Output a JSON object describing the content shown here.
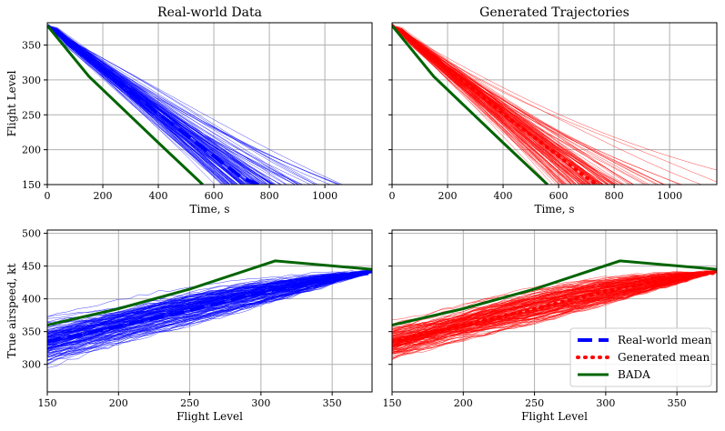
{
  "chart_data": [
    {
      "id": "tl",
      "type": "line",
      "title": "Real-world Data",
      "xlabel": "Time, s",
      "ylabel": "Flight Level",
      "xlim": [
        0,
        1170
      ],
      "ylim": [
        150,
        382
      ],
      "xticks": [
        0,
        200,
        400,
        600,
        800,
        1000
      ],
      "yticks": [
        150,
        200,
        250,
        300,
        350
      ],
      "grid": true,
      "cloud": {
        "color": "#0000ff",
        "start": [
          0,
          378
        ],
        "slope_mean": -0.31,
        "slope_spread": 0.07
      },
      "series": [
        {
          "name": "Real-world mean",
          "style": "dashed",
          "color": "#0000ff",
          "x": [
            0,
            150,
            400,
            700,
            760
          ],
          "y": [
            378,
            330,
            252,
            160,
            150
          ]
        },
        {
          "name": "BADA",
          "style": "solid",
          "color": "#006400",
          "x": [
            0,
            150,
            400,
            560
          ],
          "y": [
            378,
            305,
            210,
            150
          ]
        }
      ]
    },
    {
      "id": "tr",
      "type": "line",
      "title": "Generated Trajectories",
      "xlabel": "Time, s",
      "ylabel": "",
      "xlim": [
        0,
        1170
      ],
      "ylim": [
        150,
        382
      ],
      "xticks": [
        0,
        200,
        400,
        600,
        800,
        1000
      ],
      "yticks": [
        150,
        200,
        250,
        300,
        350
      ],
      "grid": true,
      "cloud": {
        "color": "#ff0000",
        "start": [
          0,
          378
        ],
        "slope_mean": -0.31,
        "slope_spread": 0.07
      },
      "series": [
        {
          "name": "Generated mean",
          "style": "dotted",
          "color": "#ff0000",
          "x": [
            0,
            150,
            400,
            700,
            740
          ],
          "y": [
            378,
            332,
            252,
            160,
            150
          ]
        },
        {
          "name": "BADA",
          "style": "solid",
          "color": "#006400",
          "x": [
            0,
            150,
            400,
            560
          ],
          "y": [
            378,
            305,
            210,
            150
          ]
        }
      ]
    },
    {
      "id": "bl",
      "type": "line",
      "title": "",
      "xlabel": "Flight Level",
      "ylabel": "True airspeed, kt",
      "xlim": [
        150,
        378
      ],
      "ylim": [
        258,
        505
      ],
      "xticks": [
        150,
        200,
        250,
        300,
        350
      ],
      "yticks": [
        300,
        350,
        400,
        450,
        500
      ],
      "grid": true,
      "cloud": {
        "color": "#0000ff",
        "start_mean": 335,
        "start_spread": 35,
        "end": 442,
        "bulge": 15
      },
      "series": [
        {
          "name": "Real-world mean",
          "style": "dashed",
          "color": "#0000ff",
          "x": [
            150,
            200,
            250,
            300,
            350,
            378
          ],
          "y": [
            335,
            358,
            382,
            410,
            430,
            440
          ]
        },
        {
          "name": "BADA",
          "style": "solid",
          "color": "#006400",
          "x": [
            150,
            200,
            250,
            310,
            378
          ],
          "y": [
            360,
            385,
            415,
            458,
            445
          ]
        }
      ]
    },
    {
      "id": "br",
      "type": "line",
      "title": "",
      "xlabel": "Flight Level",
      "ylabel": "",
      "xlim": [
        150,
        378
      ],
      "ylim": [
        258,
        505
      ],
      "xticks": [
        150,
        200,
        250,
        300,
        350
      ],
      "yticks": [
        300,
        350,
        400,
        450,
        500
      ],
      "grid": true,
      "cloud": {
        "color": "#ff0000",
        "start_mean": 335,
        "start_spread": 28,
        "end": 442,
        "bulge": 20
      },
      "series": [
        {
          "name": "Generated mean",
          "style": "dotted",
          "color": "#ff0000",
          "x": [
            150,
            200,
            250,
            300,
            350,
            378
          ],
          "y": [
            335,
            360,
            385,
            412,
            432,
            440
          ]
        },
        {
          "name": "BADA",
          "style": "solid",
          "color": "#006400",
          "x": [
            150,
            200,
            250,
            310,
            378
          ],
          "y": [
            360,
            385,
            415,
            458,
            445
          ]
        }
      ],
      "legend": {
        "placement": "lower-right",
        "entries": [
          {
            "label": "Real-world mean",
            "style": "dashed",
            "color": "#0000ff"
          },
          {
            "label": "Generated mean",
            "style": "dotted",
            "color": "#ff0000"
          },
          {
            "label": "BADA",
            "style": "solid",
            "color": "#006400"
          }
        ]
      }
    }
  ]
}
